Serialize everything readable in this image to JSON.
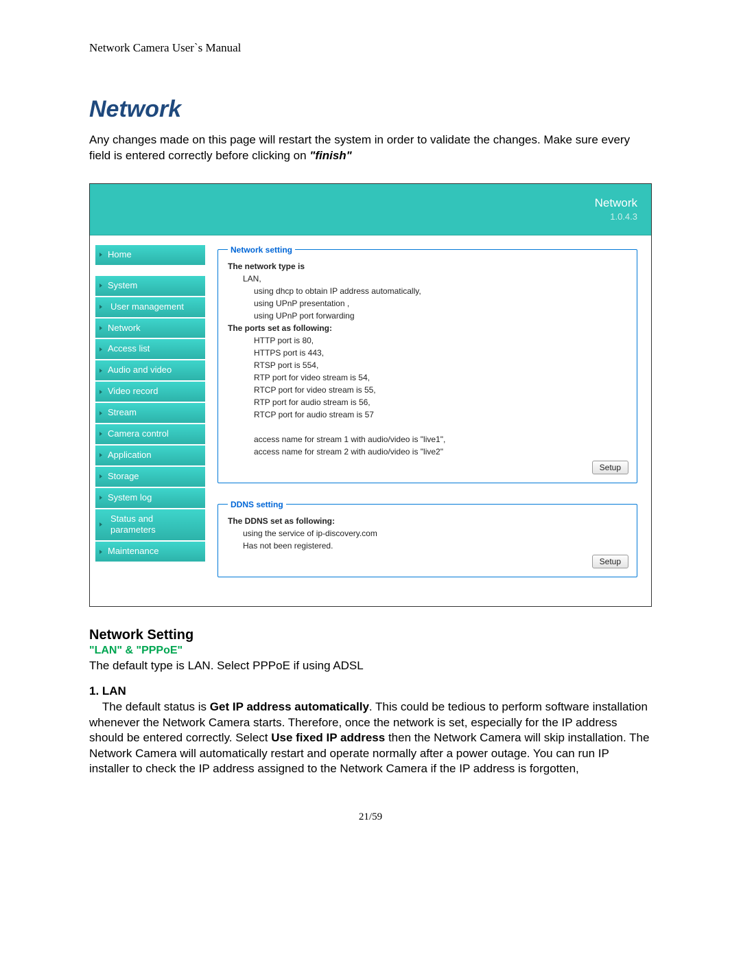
{
  "doc": {
    "header": "Network Camera User`s Manual",
    "title": "Network",
    "intro_part1": "Any changes made on this page will restart the system in order to validate the changes. Make sure every field is entered correctly before clicking on ",
    "intro_finish": "\"finish\"",
    "page_number": "21/59"
  },
  "banner": {
    "title": "Network",
    "version": "1.0.4.3",
    "bg_color": "#33c4ba"
  },
  "sidebar": {
    "items": [
      {
        "label": "Home",
        "name": "sidebar-item-home"
      },
      {
        "label": "System",
        "name": "sidebar-item-system"
      },
      {
        "label": "User management",
        "name": "sidebar-item-user-management",
        "sub": true
      },
      {
        "label": "Network",
        "name": "sidebar-item-network"
      },
      {
        "label": "Access list",
        "name": "sidebar-item-access-list"
      },
      {
        "label": "Audio and video",
        "name": "sidebar-item-audio-video"
      },
      {
        "label": "Video record",
        "name": "sidebar-item-video-record"
      },
      {
        "label": "Stream",
        "name": "sidebar-item-stream"
      },
      {
        "label": "Camera control",
        "name": "sidebar-item-camera-control"
      },
      {
        "label": "Application",
        "name": "sidebar-item-application"
      },
      {
        "label": "Storage",
        "name": "sidebar-item-storage"
      },
      {
        "label": "System log",
        "name": "sidebar-item-system-log"
      },
      {
        "label": "Status and parameters",
        "name": "sidebar-item-status-parameters",
        "sub": true
      },
      {
        "label": "Maintenance",
        "name": "sidebar-item-maintenance"
      }
    ]
  },
  "network_panel": {
    "legend": "Network setting",
    "h1": "The network type is",
    "l1": "LAN,",
    "l2": "using dhcp to obtain IP address automatically,",
    "l3": "using UPnP presentation ,",
    "l4": "using UPnP port forwarding",
    "h2": "The ports set as following:",
    "p1": "HTTP port is 80,",
    "p2": "HTTPS port is 443,",
    "p3": "RTSP port is 554,",
    "p4": "RTP port for video stream is 54,",
    "p5": "RTCP port for video stream is 55,",
    "p6": "RTP port for audio stream is 56,",
    "p7": "RTCP port for audio stream is 57",
    "a1": "access name for stream 1 with audio/video is \"live1\",",
    "a2": "access name for stream 2 with audio/video is \"live2\"",
    "setup": "Setup"
  },
  "ddns_panel": {
    "legend": "DDNS setting",
    "h1": "The DDNS set as following:",
    "l1": "using the service of ip-discovery.com",
    "l2": "Has not been registered.",
    "setup": "Setup"
  },
  "lower": {
    "h2": "Network Setting",
    "green": "\"LAN\" & \"PPPoE\"",
    "p1": "The default type is LAN. Select PPPoE if using ADSL",
    "numhead": "1. LAN",
    "lan_a": "The default status is ",
    "lan_b": "Get IP address automatically",
    "lan_c": ". This could be tedious to perform software installation whenever the Network Camera starts. Therefore, once the network is set, especially for the IP address should be entered correctly. Select ",
    "lan_d": "Use fixed IP address",
    "lan_e": " then the Network Camera will skip installation. The Network Camera will automatically restart and operate normally after a power outage. You can run IP installer to check the IP address assigned to the Network Camera if the IP address is forgotten,"
  },
  "colors": {
    "heading": "#1f497d",
    "green": "#00a651",
    "panel_border": "#0078D7",
    "legend": "#0066d6"
  }
}
